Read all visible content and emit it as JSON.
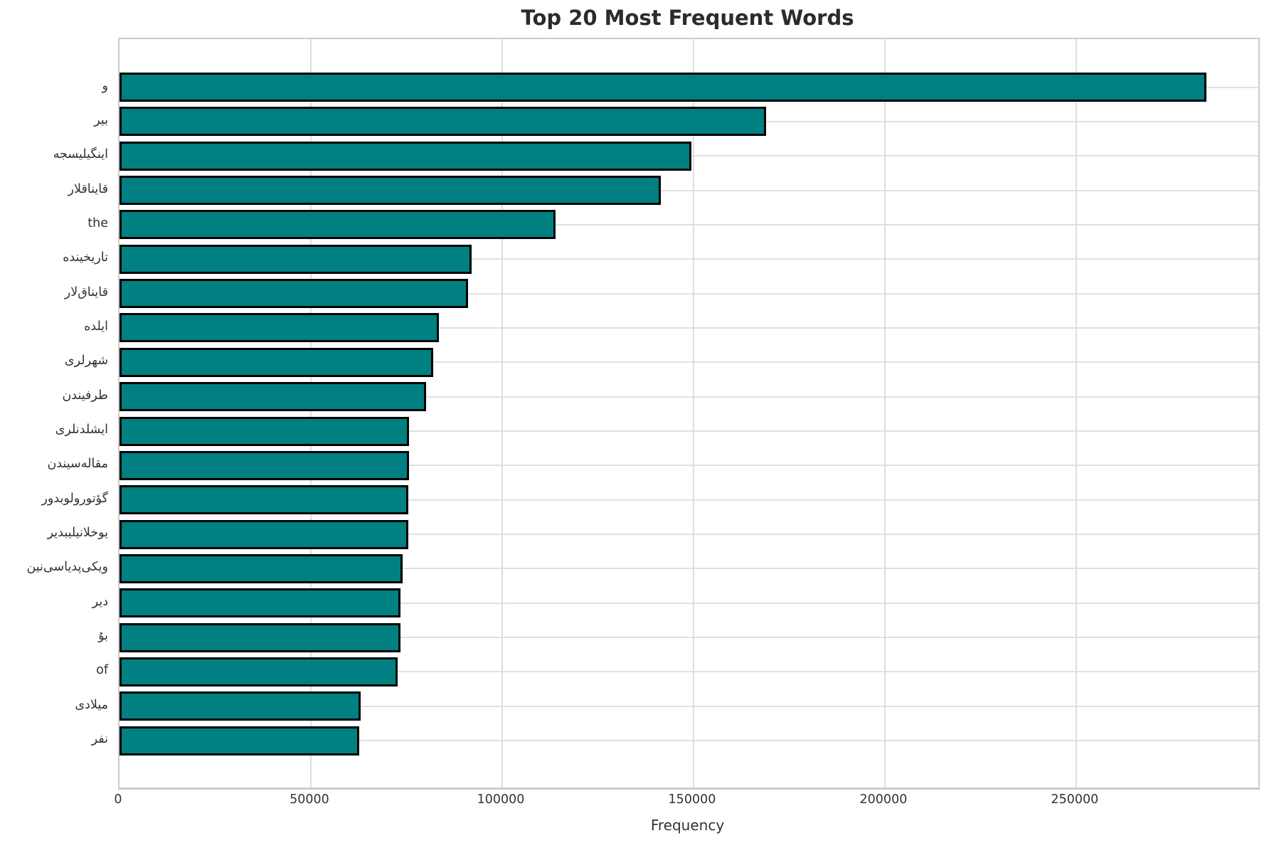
{
  "chart_data": {
    "type": "bar",
    "orientation": "horizontal",
    "title": "Top 20 Most Frequent Words",
    "xlabel": "Frequency",
    "ylabel": "",
    "categories": [
      "و",
      "بیر",
      "اینگیلیسجه",
      "قایناقلار",
      "the",
      "تاریخینده",
      "قایناق‌لار",
      "ایلده",
      "شهرلری",
      "طرفیندن",
      "ایشلدنلری",
      "مقاله‌سیندن",
      "گؤتورولوبدور",
      "یوخلانیلیبدیر",
      "ویکی‌پدیاسی‌نین",
      "دیر",
      "بۇ",
      "of",
      "میلادی",
      "نفر"
    ],
    "values": [
      284000,
      169000,
      149500,
      141500,
      114000,
      92000,
      91000,
      83500,
      82000,
      80200,
      75700,
      75600,
      75500,
      75400,
      74000,
      73500,
      73400,
      72600,
      63000,
      62600
    ],
    "x_ticks": [
      0,
      50000,
      100000,
      150000,
      200000,
      250000
    ],
    "x_tick_labels": [
      "0",
      "50000",
      "100000",
      "150000",
      "200000",
      "250000"
    ],
    "xlim": [
      0,
      297600
    ],
    "grid": true,
    "legend": null,
    "bar_color": "#008080",
    "bar_edge_color": "#000000"
  }
}
